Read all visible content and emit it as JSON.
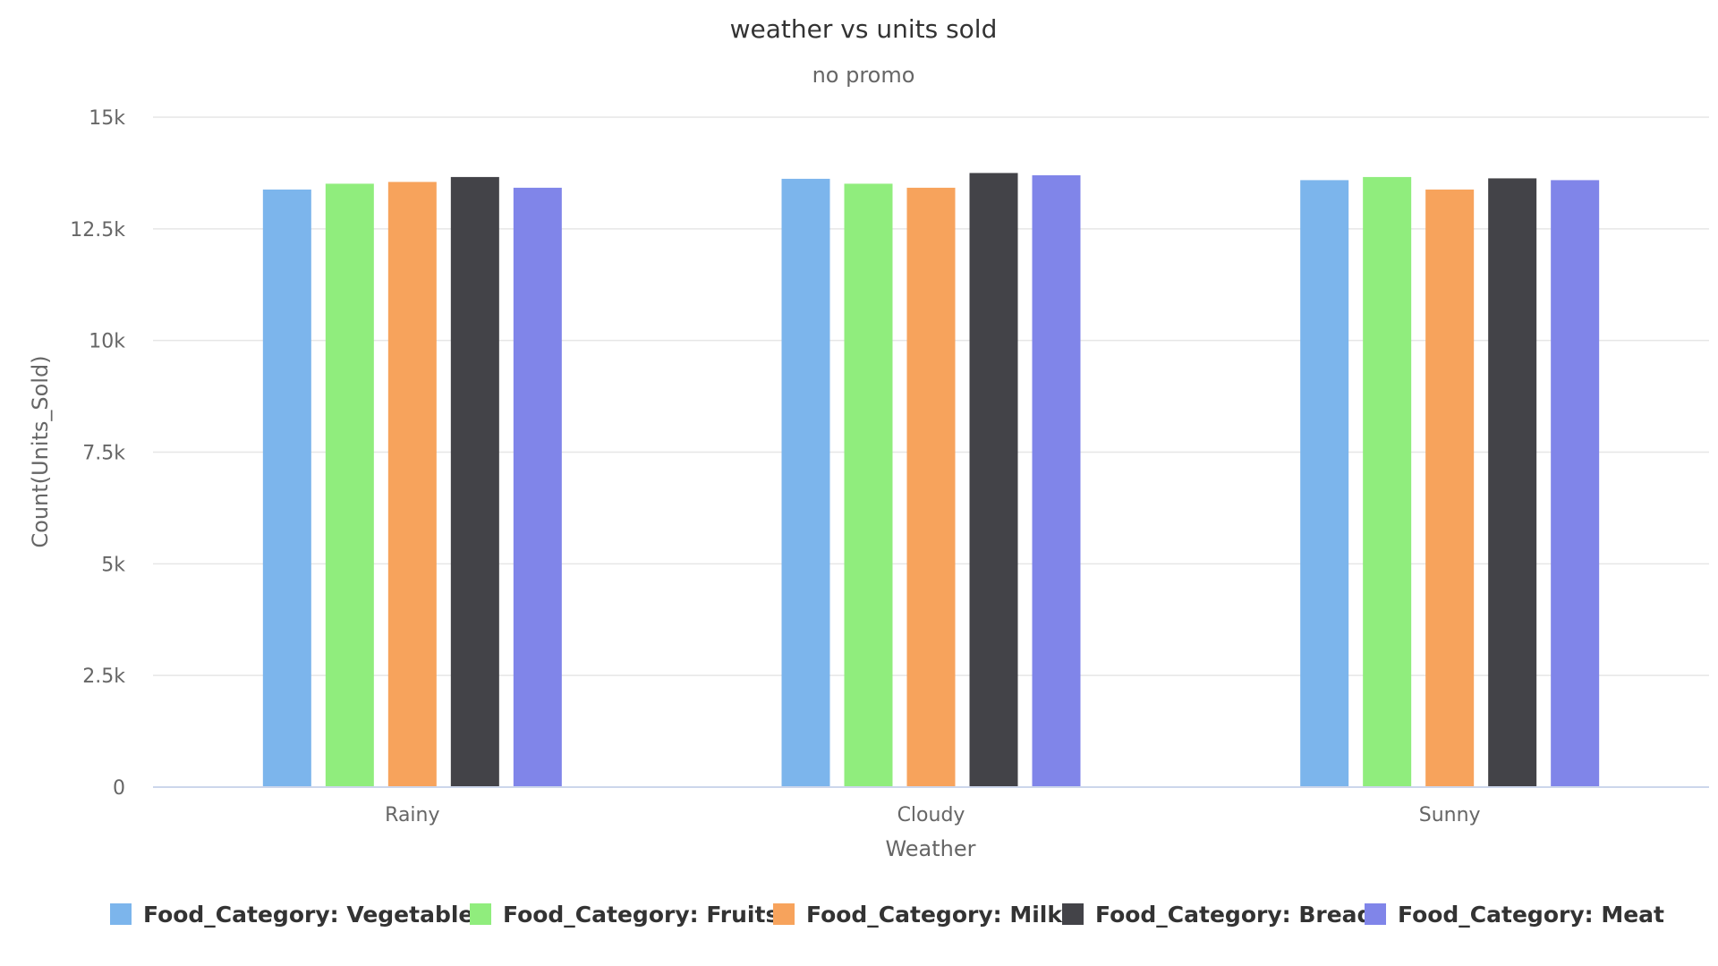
{
  "chart_data": {
    "type": "bar",
    "title": "weather vs units sold",
    "subtitle": "no promo",
    "xlabel": "Weather",
    "ylabel": "Count(Units_Sold)",
    "categories": [
      "Rainy",
      "Cloudy",
      "Sunny"
    ],
    "ylim": [
      0,
      15000
    ],
    "yticks": [
      0,
      2500,
      5000,
      7500,
      10000,
      12500,
      15000
    ],
    "ytick_labels": [
      "0",
      "2.5k",
      "5k",
      "7.5k",
      "10k",
      "12.5k",
      "15k"
    ],
    "grid": true,
    "legend_position": "bottom",
    "series": [
      {
        "name": "Food_Category: Vegetables",
        "color": "#7cb5ec",
        "values": [
          13380,
          13620,
          13590
        ]
      },
      {
        "name": "Food_Category: Fruits",
        "color": "#90ed7d",
        "values": [
          13510,
          13510,
          13660
        ]
      },
      {
        "name": "Food_Category: Milk",
        "color": "#f7a35c",
        "values": [
          13550,
          13420,
          13380
        ]
      },
      {
        "name": "Food_Category: Bread",
        "color": "#434348",
        "values": [
          13660,
          13750,
          13630
        ]
      },
      {
        "name": "Food_Category: Meat",
        "color": "#8085e9",
        "values": [
          13420,
          13700,
          13590
        ]
      }
    ]
  }
}
